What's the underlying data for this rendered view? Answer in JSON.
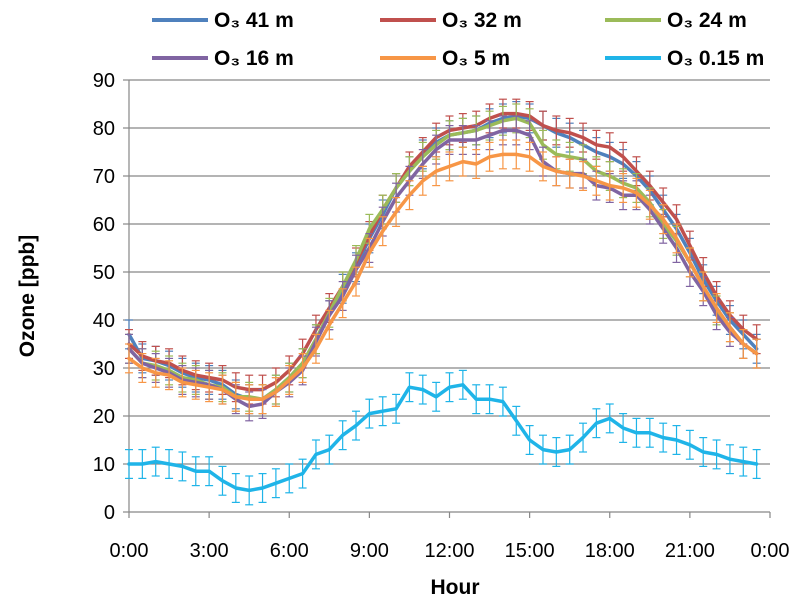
{
  "chart_data": {
    "type": "line",
    "xlabel": "Hour",
    "ylabel": "Ozone [ppb]",
    "ylim": [
      0,
      90
    ],
    "yticks": [
      "0",
      "10",
      "20",
      "30",
      "40",
      "50",
      "60",
      "70",
      "80",
      "90"
    ],
    "xticks": [
      "0:00",
      "3:00",
      "6:00",
      "9:00",
      "12:00",
      "15:00",
      "18:00",
      "21:00",
      "0:00"
    ],
    "grid": "horizontal",
    "legend_position": "top",
    "x_hours": [
      0,
      0.5,
      1,
      1.5,
      2,
      2.5,
      3,
      3.5,
      4,
      4.5,
      5,
      5.5,
      6,
      6.5,
      7,
      7.5,
      8,
      8.5,
      9,
      9.5,
      10,
      10.5,
      11,
      11.5,
      12,
      12.5,
      13,
      13.5,
      14,
      14.5,
      15,
      15.5,
      16,
      16.5,
      17,
      17.5,
      18,
      18.5,
      19,
      19.5,
      20,
      20.5,
      21,
      21.5,
      22,
      22.5,
      23,
      23.5
    ],
    "error_bar": 3,
    "series": [
      {
        "name": "O₃ 41 m",
        "color": "#4f81bd",
        "values": [
          37,
          32,
          31.5,
          30.5,
          29,
          28,
          27.5,
          26.5,
          24.5,
          23.5,
          23.5,
          25.5,
          28,
          31,
          36,
          41,
          46.5,
          51,
          57,
          62,
          67.5,
          71,
          74.5,
          77,
          78.5,
          79,
          79.5,
          81,
          82,
          82.5,
          82,
          80.5,
          79,
          78,
          76.5,
          75,
          74,
          72.5,
          70,
          67,
          63,
          59,
          54,
          48.5,
          44,
          40,
          37,
          34
        ]
      },
      {
        "name": "O₃ 32 m",
        "color": "#c0504d",
        "values": [
          35,
          32.5,
          31.5,
          31,
          29.5,
          28.5,
          28,
          27.5,
          26,
          25.5,
          25.5,
          27,
          29.5,
          33,
          38,
          42.5,
          47,
          52,
          57.5,
          63,
          67.5,
          72,
          75,
          78,
          79.5,
          80,
          80.5,
          82,
          83,
          83,
          82.5,
          80.5,
          79.5,
          79,
          78,
          76.5,
          76,
          74,
          71,
          68,
          64.5,
          61,
          55.5,
          50,
          45,
          41,
          38,
          36
        ]
      },
      {
        "name": "O₃ 24 m",
        "color": "#9bbb59",
        "values": [
          34,
          31,
          30.5,
          29.5,
          28,
          27.5,
          26.5,
          26,
          24,
          24,
          23.5,
          25.5,
          28,
          31,
          36,
          41.5,
          47,
          52.5,
          59,
          63,
          67.5,
          71,
          74,
          76.5,
          78.5,
          79,
          79.5,
          80.5,
          81.5,
          82,
          81,
          76.5,
          74.5,
          74,
          73.5,
          71,
          70,
          68.5,
          67.5,
          64.5,
          60,
          56.5,
          52,
          47,
          42,
          38.5,
          35,
          33
        ]
      },
      {
        "name": "O₃ 16 m",
        "color": "#8064a2",
        "values": [
          34,
          31,
          30,
          29,
          27.5,
          27,
          26.5,
          25.5,
          23.5,
          22,
          22.5,
          25,
          27,
          29.5,
          35.5,
          41,
          45,
          50.5,
          55,
          60.5,
          65.5,
          69,
          72.5,
          75.5,
          77.5,
          77.5,
          77.5,
          78.5,
          79.5,
          79.5,
          78.5,
          73,
          71,
          70.5,
          70.5,
          68,
          67.5,
          66,
          66,
          63,
          59,
          55,
          50,
          46,
          41,
          37.5,
          35,
          33
        ]
      },
      {
        "name": "O₃ 5 m",
        "color": "#f79646",
        "values": [
          32,
          30,
          29,
          28.5,
          27,
          26.5,
          26,
          25.5,
          24,
          23.5,
          23.5,
          25,
          27.5,
          30,
          34,
          39,
          43.5,
          48,
          54,
          58.5,
          62.5,
          66,
          69,
          71,
          72,
          73,
          72.5,
          74,
          74.5,
          74.5,
          74,
          72,
          71,
          70.5,
          70,
          69,
          68,
          67.5,
          66.5,
          64,
          61,
          57,
          52,
          47,
          42.5,
          38.5,
          35,
          33
        ]
      },
      {
        "name": "O₃ 0.15 m",
        "color": "#1fb4e8",
        "values": [
          10,
          10,
          10.5,
          10,
          9.5,
          8.5,
          8.5,
          6.5,
          5,
          4.5,
          5,
          6,
          7,
          8,
          12,
          13,
          16,
          18,
          20.5,
          21,
          21.5,
          26,
          25.5,
          24,
          26,
          26.5,
          23.5,
          23.5,
          23,
          19,
          15,
          13,
          12.5,
          13,
          15.5,
          18.5,
          19.5,
          17.5,
          16.5,
          16.5,
          15.5,
          15,
          14,
          12.5,
          12,
          11,
          10.5,
          10
        ]
      }
    ]
  }
}
